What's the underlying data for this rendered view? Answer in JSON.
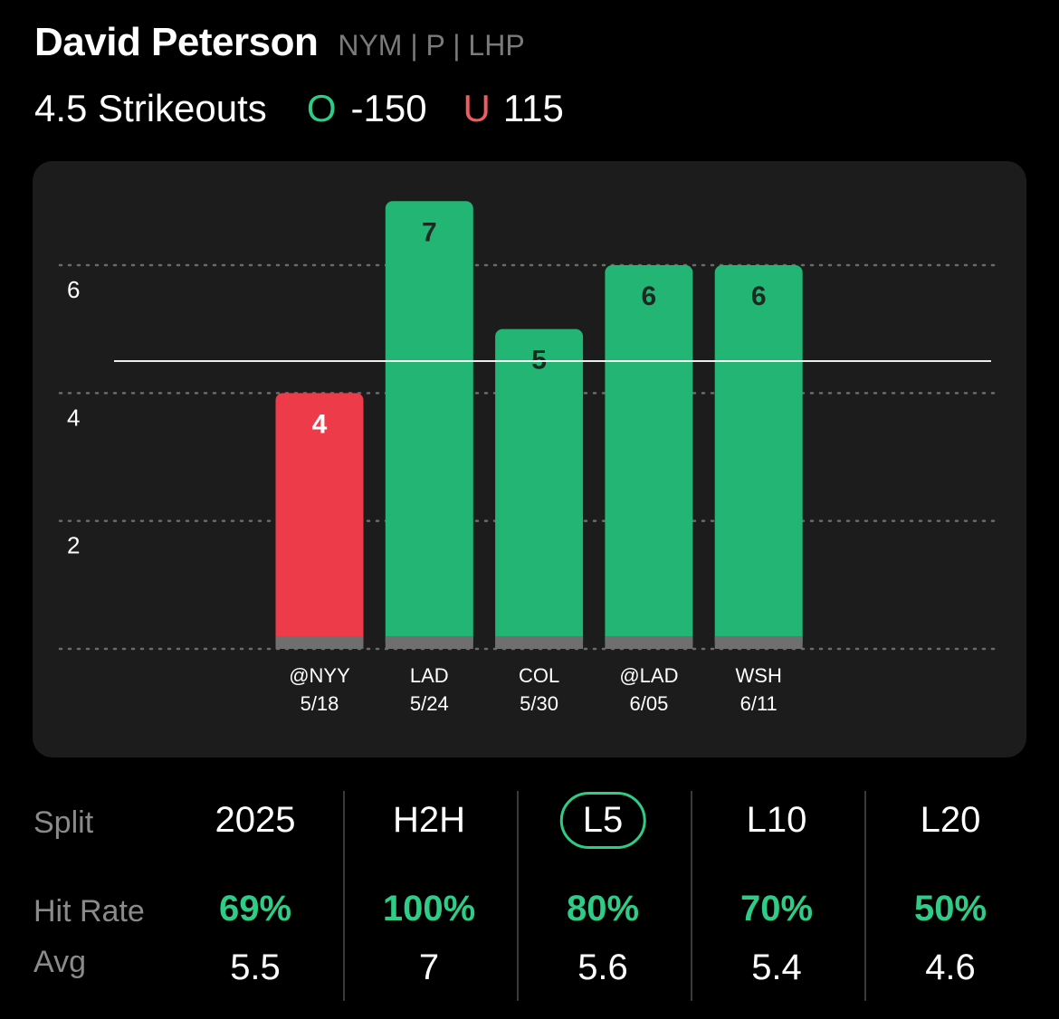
{
  "player": {
    "name": "David Peterson",
    "meta": "NYM | P | LHP"
  },
  "prop": {
    "line": "4.5 Strikeouts",
    "over_marker": "O",
    "over_odds": "-150",
    "under_marker": "U",
    "under_odds": "115"
  },
  "colors": {
    "over": "#22b573",
    "under": "#ee3b4a",
    "accent": "#2ecc87"
  },
  "chart_data": {
    "type": "bar",
    "categories": [
      "@NYY 5/18",
      "LAD 5/24",
      "COL 5/30",
      "@LAD 6/05",
      "WSH 6/11"
    ],
    "opponents": [
      "@NYY",
      "LAD",
      "COL",
      "@LAD",
      "WSH"
    ],
    "dates": [
      "5/18",
      "5/24",
      "5/30",
      "6/05",
      "6/11"
    ],
    "values": [
      4,
      7,
      5,
      6,
      6
    ],
    "threshold": 4.5,
    "y_ticks": [
      2,
      4,
      6
    ],
    "ylim": [
      0,
      7
    ],
    "grid": true
  },
  "splits": {
    "label": "Split",
    "hit_rate_label": "Hit Rate",
    "avg_label": "Avg",
    "active": "L5",
    "columns": [
      {
        "name": "2025",
        "hit_rate": "69%",
        "avg": "5.5"
      },
      {
        "name": "H2H",
        "hit_rate": "100%",
        "avg": "7"
      },
      {
        "name": "L5",
        "hit_rate": "80%",
        "avg": "5.6"
      },
      {
        "name": "L10",
        "hit_rate": "70%",
        "avg": "5.4"
      },
      {
        "name": "L20",
        "hit_rate": "50%",
        "avg": "4.6"
      }
    ]
  }
}
